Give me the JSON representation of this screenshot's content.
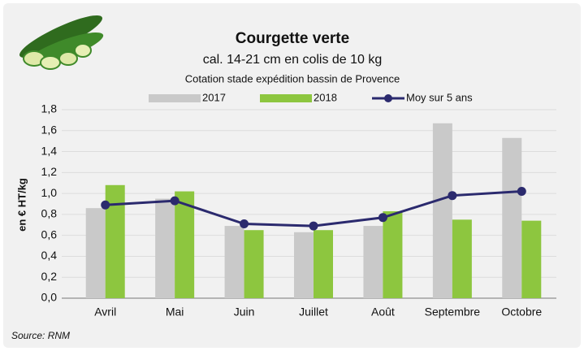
{
  "chart_data": {
    "type": "bar",
    "title": "Courgette verte",
    "subtitle": "cal. 14-21 cm en colis de 10 kg",
    "note": "Cotation stade expédition bassin de Provence",
    "y_label": "en € HT/kg",
    "source": "Source: RNM",
    "categories": [
      "Avril",
      "Mai",
      "Juin",
      "Juillet",
      "Août",
      "Septembre",
      "Octobre"
    ],
    "series": [
      {
        "name": "2017",
        "color": "#c9c9c9",
        "type": "bar",
        "values": [
          0.86,
          0.95,
          0.69,
          0.63,
          0.69,
          1.67,
          1.53
        ]
      },
      {
        "name": "2018",
        "color": "#8dc63f",
        "type": "bar",
        "values": [
          1.08,
          1.02,
          0.65,
          0.65,
          0.83,
          0.75,
          0.74
        ]
      },
      {
        "name": "Moy sur 5 ans",
        "color": "#2b2a6e",
        "type": "line",
        "values": [
          0.89,
          0.93,
          0.71,
          0.69,
          0.77,
          0.98,
          1.02
        ]
      }
    ],
    "ylim": [
      0,
      1.8
    ],
    "yticks": [
      {
        "value": 0,
        "label": "0,0"
      },
      {
        "value": 0.2,
        "label": "0,2"
      },
      {
        "value": 0.4,
        "label": "0,4"
      },
      {
        "value": 0.6,
        "label": "0,6"
      },
      {
        "value": 0.8,
        "label": "0,8"
      },
      {
        "value": 1,
        "label": "1,0"
      },
      {
        "value": 1.2,
        "label": "1,2"
      },
      {
        "value": 1.4,
        "label": "1,4"
      },
      {
        "value": 1.6,
        "label": "1,6"
      },
      {
        "value": 1.8,
        "label": "1,8"
      }
    ],
    "grid": true
  }
}
